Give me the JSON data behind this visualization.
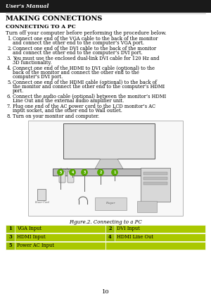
{
  "title_header": "User's Manual",
  "section_title": "MAKING CONNECTIONS",
  "subsection_title": "CONNECTING TO A PC",
  "intro_text": "Turn off your computer before performing the procedure below.",
  "steps": [
    "Connect one end of the VGA cable to the back of the monitor and connect the other end to the computer’s VGA port.",
    "Connect one end of the DVI cable to the back of the monitor and connect the other end to the computer’s DVI port.",
    "You must use the enclosed dual-link DVI cable for 120 Hz and 3D functionality.",
    "Connect one end of the HDMI to DVI cable (optional) to the back of the monitor and connect the other end to the computer’s DVI port.",
    "Connect one end of the HDMI cable (optional) to the back of the monitor and connect the other end to the computer’s HDMI port.",
    "Connect the audio cable (optional) between the monitor’s HDMI Line Out and the external audio amplifier unit.",
    "Plug one end of the AC power cord to the LCD monitor’s AC input socket, and the other end to Wall outlet.",
    "Turn on your monitor and computer."
  ],
  "figure_caption": "Figure.2. Connecting to a PC",
  "table": [
    {
      "num": "1",
      "label": "VGA Input",
      "num2": "2",
      "label2": "DVI Input"
    },
    {
      "num": "3",
      "label": "HDMI Input",
      "num2": "4",
      "label2": "HDMI Line Out"
    },
    {
      "num": "5",
      "label": "Power AC Input",
      "num2": "",
      "label2": ""
    }
  ],
  "table_bg_color": "#aac800",
  "table_text_color": "#000000",
  "header_bg_color": "#1a1a1a",
  "header_line_color": "#888888",
  "bg_color": "#ffffff",
  "page_number": "10",
  "text_color": "#000000",
  "header_text_color": "#ffffff",
  "num_cell_bg": "#888888"
}
